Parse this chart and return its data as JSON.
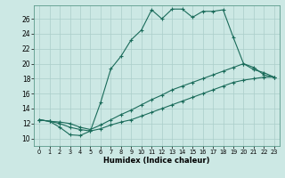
{
  "xlabel": "Humidex (Indice chaleur)",
  "bg_color": "#cce8e4",
  "line_color": "#1a6b5a",
  "grid_color": "#aaceca",
  "xlim": [
    -0.5,
    23.5
  ],
  "ylim": [
    9.0,
    27.8
  ],
  "xticks": [
    0,
    1,
    2,
    3,
    4,
    5,
    6,
    7,
    8,
    9,
    10,
    11,
    12,
    13,
    14,
    15,
    16,
    17,
    18,
    19,
    20,
    21,
    22,
    23
  ],
  "yticks": [
    10,
    12,
    14,
    16,
    18,
    20,
    22,
    24,
    26
  ],
  "line1_x": [
    0,
    1,
    2,
    3,
    4,
    5,
    6,
    7,
    8,
    9,
    10,
    11,
    12,
    13,
    14,
    15,
    16,
    17,
    18,
    19,
    20,
    21,
    22,
    23
  ],
  "line1_y": [
    12.5,
    12.3,
    11.5,
    10.5,
    10.4,
    11.0,
    14.8,
    19.3,
    21.0,
    23.2,
    24.5,
    27.2,
    26.0,
    27.3,
    27.3,
    26.2,
    27.0,
    27.0,
    27.2,
    23.5,
    20.0,
    19.5,
    18.5,
    18.2
  ],
  "line2_x": [
    0,
    1,
    2,
    3,
    4,
    5,
    6,
    7,
    8,
    9,
    10,
    11,
    12,
    13,
    14,
    15,
    16,
    17,
    18,
    19,
    20,
    21,
    22,
    23
  ],
  "line2_y": [
    12.5,
    12.3,
    12.2,
    12.0,
    11.5,
    11.2,
    11.8,
    12.5,
    13.2,
    13.8,
    14.5,
    15.2,
    15.8,
    16.5,
    17.0,
    17.5,
    18.0,
    18.5,
    19.0,
    19.5,
    20.0,
    19.2,
    18.8,
    18.2
  ],
  "line3_x": [
    0,
    1,
    2,
    3,
    4,
    5,
    6,
    7,
    8,
    9,
    10,
    11,
    12,
    13,
    14,
    15,
    16,
    17,
    18,
    19,
    20,
    21,
    22,
    23
  ],
  "line3_y": [
    12.5,
    12.3,
    12.0,
    11.5,
    11.2,
    11.0,
    11.3,
    11.8,
    12.2,
    12.5,
    13.0,
    13.5,
    14.0,
    14.5,
    15.0,
    15.5,
    16.0,
    16.5,
    17.0,
    17.5,
    17.8,
    18.0,
    18.2,
    18.2
  ]
}
